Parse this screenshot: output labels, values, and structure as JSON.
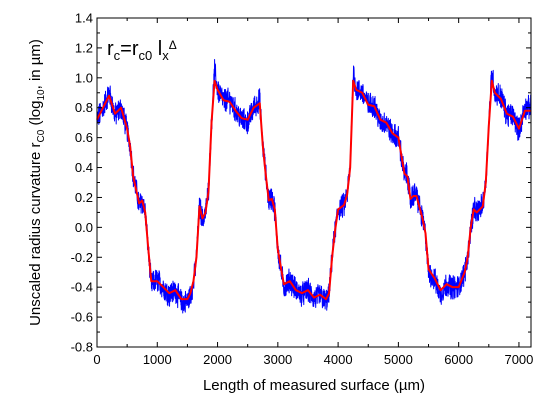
{
  "chart_data": {
    "type": "line",
    "xlabel": "Length of measured surface (µm)",
    "ylabel_parts": [
      "Unscaled radius curvature r",
      "C0",
      " (log",
      "10",
      ", in µm)"
    ],
    "annotation": {
      "parts": [
        {
          "t": "r",
          "s": "base"
        },
        {
          "t": "c",
          "s": "sub"
        },
        {
          "t": "=r",
          "s": "base"
        },
        {
          "t": "c0",
          "s": "sub"
        },
        {
          "t": " l",
          "s": "base"
        },
        {
          "t": "x",
          "s": "sub"
        },
        {
          "t": "Δ",
          "s": "sup"
        }
      ]
    },
    "xlim": [
      0,
      7200
    ],
    "ylim": [
      -0.8,
      1.4
    ],
    "xticks": [
      0,
      1000,
      2000,
      3000,
      4000,
      5000,
      6000,
      7000
    ],
    "yticks": [
      -0.8,
      -0.6,
      -0.4,
      -0.2,
      0.0,
      0.2,
      0.4,
      0.6,
      0.8,
      1.0,
      1.2,
      1.4
    ],
    "ytick_labels": [
      "-0.8",
      "-0.6",
      "-0.4",
      "-0.2",
      "0.0",
      "0.2",
      "0.4",
      "0.6",
      "0.8",
      "1.0",
      "1.2",
      "1.4"
    ],
    "grid": false,
    "series": [
      {
        "color": "#0000ff",
        "noise": 0.07,
        "x": [
          0,
          100,
          200,
          300,
          400,
          500,
          550,
          600,
          650,
          700,
          750,
          800,
          850,
          900,
          1000,
          1100,
          1200,
          1300,
          1400,
          1500,
          1550,
          1600,
          1650,
          1700,
          1750,
          1800,
          1850,
          1900,
          1950,
          2000,
          2100,
          2200,
          2300,
          2400,
          2500,
          2600,
          2700,
          2750,
          2800,
          2850,
          2900,
          2950,
          3000,
          3100,
          3200,
          3300,
          3400,
          3500,
          3600,
          3700,
          3800,
          3850,
          3900,
          3950,
          4000,
          4100,
          4150,
          4200,
          4250,
          4300,
          4400,
          4500,
          4600,
          4700,
          4800,
          4900,
          5000,
          5100,
          5150,
          5200,
          5250,
          5300,
          5400,
          5450,
          5500,
          5600,
          5700,
          5800,
          5900,
          6000,
          6100,
          6150,
          6200,
          6250,
          6300,
          6400,
          6450,
          6500,
          6550,
          6600,
          6700,
          6800,
          6900,
          7000,
          7100,
          7200
        ],
        "y": [
          0.72,
          0.8,
          0.9,
          0.75,
          0.8,
          0.65,
          0.55,
          0.35,
          0.25,
          0.15,
          0.18,
          0.1,
          -0.15,
          -0.38,
          -0.35,
          -0.4,
          -0.45,
          -0.42,
          -0.5,
          -0.5,
          -0.45,
          -0.38,
          -0.2,
          0.15,
          0.05,
          0.1,
          0.25,
          0.7,
          1.05,
          0.92,
          0.85,
          0.85,
          0.78,
          0.72,
          0.7,
          0.8,
          0.85,
          0.55,
          0.35,
          0.18,
          0.2,
          0.12,
          -0.15,
          -0.4,
          -0.35,
          -0.42,
          -0.45,
          -0.42,
          -0.48,
          -0.45,
          -0.5,
          -0.45,
          -0.2,
          -0.02,
          0.12,
          0.15,
          0.22,
          0.4,
          1.05,
          0.92,
          0.9,
          0.82,
          0.82,
          0.7,
          0.7,
          0.62,
          0.6,
          0.35,
          0.35,
          0.18,
          0.22,
          0.22,
          0.05,
          -0.05,
          -0.3,
          -0.35,
          -0.45,
          -0.38,
          -0.4,
          -0.4,
          -0.3,
          -0.2,
          0.0,
          0.12,
          0.1,
          0.15,
          0.3,
          0.7,
          1.05,
          0.9,
          0.88,
          0.75,
          0.75,
          0.65,
          0.8,
          0.8
        ]
      },
      {
        "color": "#ff0000",
        "x": [
          0,
          100,
          200,
          300,
          400,
          500,
          550,
          600,
          650,
          700,
          750,
          800,
          850,
          900,
          1000,
          1100,
          1200,
          1300,
          1400,
          1500,
          1550,
          1600,
          1650,
          1700,
          1750,
          1800,
          1850,
          1900,
          1950,
          2000,
          2100,
          2200,
          2300,
          2400,
          2500,
          2600,
          2700,
          2750,
          2800,
          2850,
          2900,
          2950,
          3000,
          3100,
          3200,
          3300,
          3400,
          3500,
          3600,
          3700,
          3800,
          3850,
          3900,
          3950,
          4000,
          4100,
          4150,
          4200,
          4250,
          4300,
          4400,
          4500,
          4600,
          4700,
          4800,
          4900,
          5000,
          5100,
          5150,
          5200,
          5250,
          5300,
          5400,
          5450,
          5500,
          5600,
          5700,
          5800,
          5900,
          6000,
          6100,
          6150,
          6200,
          6250,
          6300,
          6400,
          6450,
          6500,
          6550,
          6600,
          6700,
          6800,
          6900,
          7000,
          7100,
          7200
        ],
        "y": [
          0.72,
          0.8,
          0.88,
          0.76,
          0.8,
          0.66,
          0.54,
          0.34,
          0.25,
          0.16,
          0.18,
          0.1,
          -0.14,
          -0.36,
          -0.36,
          -0.4,
          -0.44,
          -0.42,
          -0.48,
          -0.48,
          -0.44,
          -0.36,
          -0.2,
          0.14,
          0.06,
          0.1,
          0.24,
          0.7,
          0.98,
          0.92,
          0.85,
          0.84,
          0.78,
          0.73,
          0.72,
          0.8,
          0.83,
          0.55,
          0.35,
          0.18,
          0.19,
          0.12,
          -0.15,
          -0.38,
          -0.36,
          -0.42,
          -0.44,
          -0.42,
          -0.47,
          -0.45,
          -0.48,
          -0.44,
          -0.2,
          -0.02,
          0.12,
          0.15,
          0.22,
          0.4,
          0.98,
          0.92,
          0.9,
          0.82,
          0.81,
          0.72,
          0.7,
          0.63,
          0.6,
          0.36,
          0.34,
          0.19,
          0.21,
          0.21,
          0.06,
          -0.04,
          -0.28,
          -0.34,
          -0.42,
          -0.38,
          -0.4,
          -0.4,
          -0.3,
          -0.2,
          0.0,
          0.12,
          0.1,
          0.14,
          0.3,
          0.68,
          0.98,
          0.9,
          0.86,
          0.76,
          0.74,
          0.66,
          0.78,
          0.78
        ]
      }
    ]
  }
}
